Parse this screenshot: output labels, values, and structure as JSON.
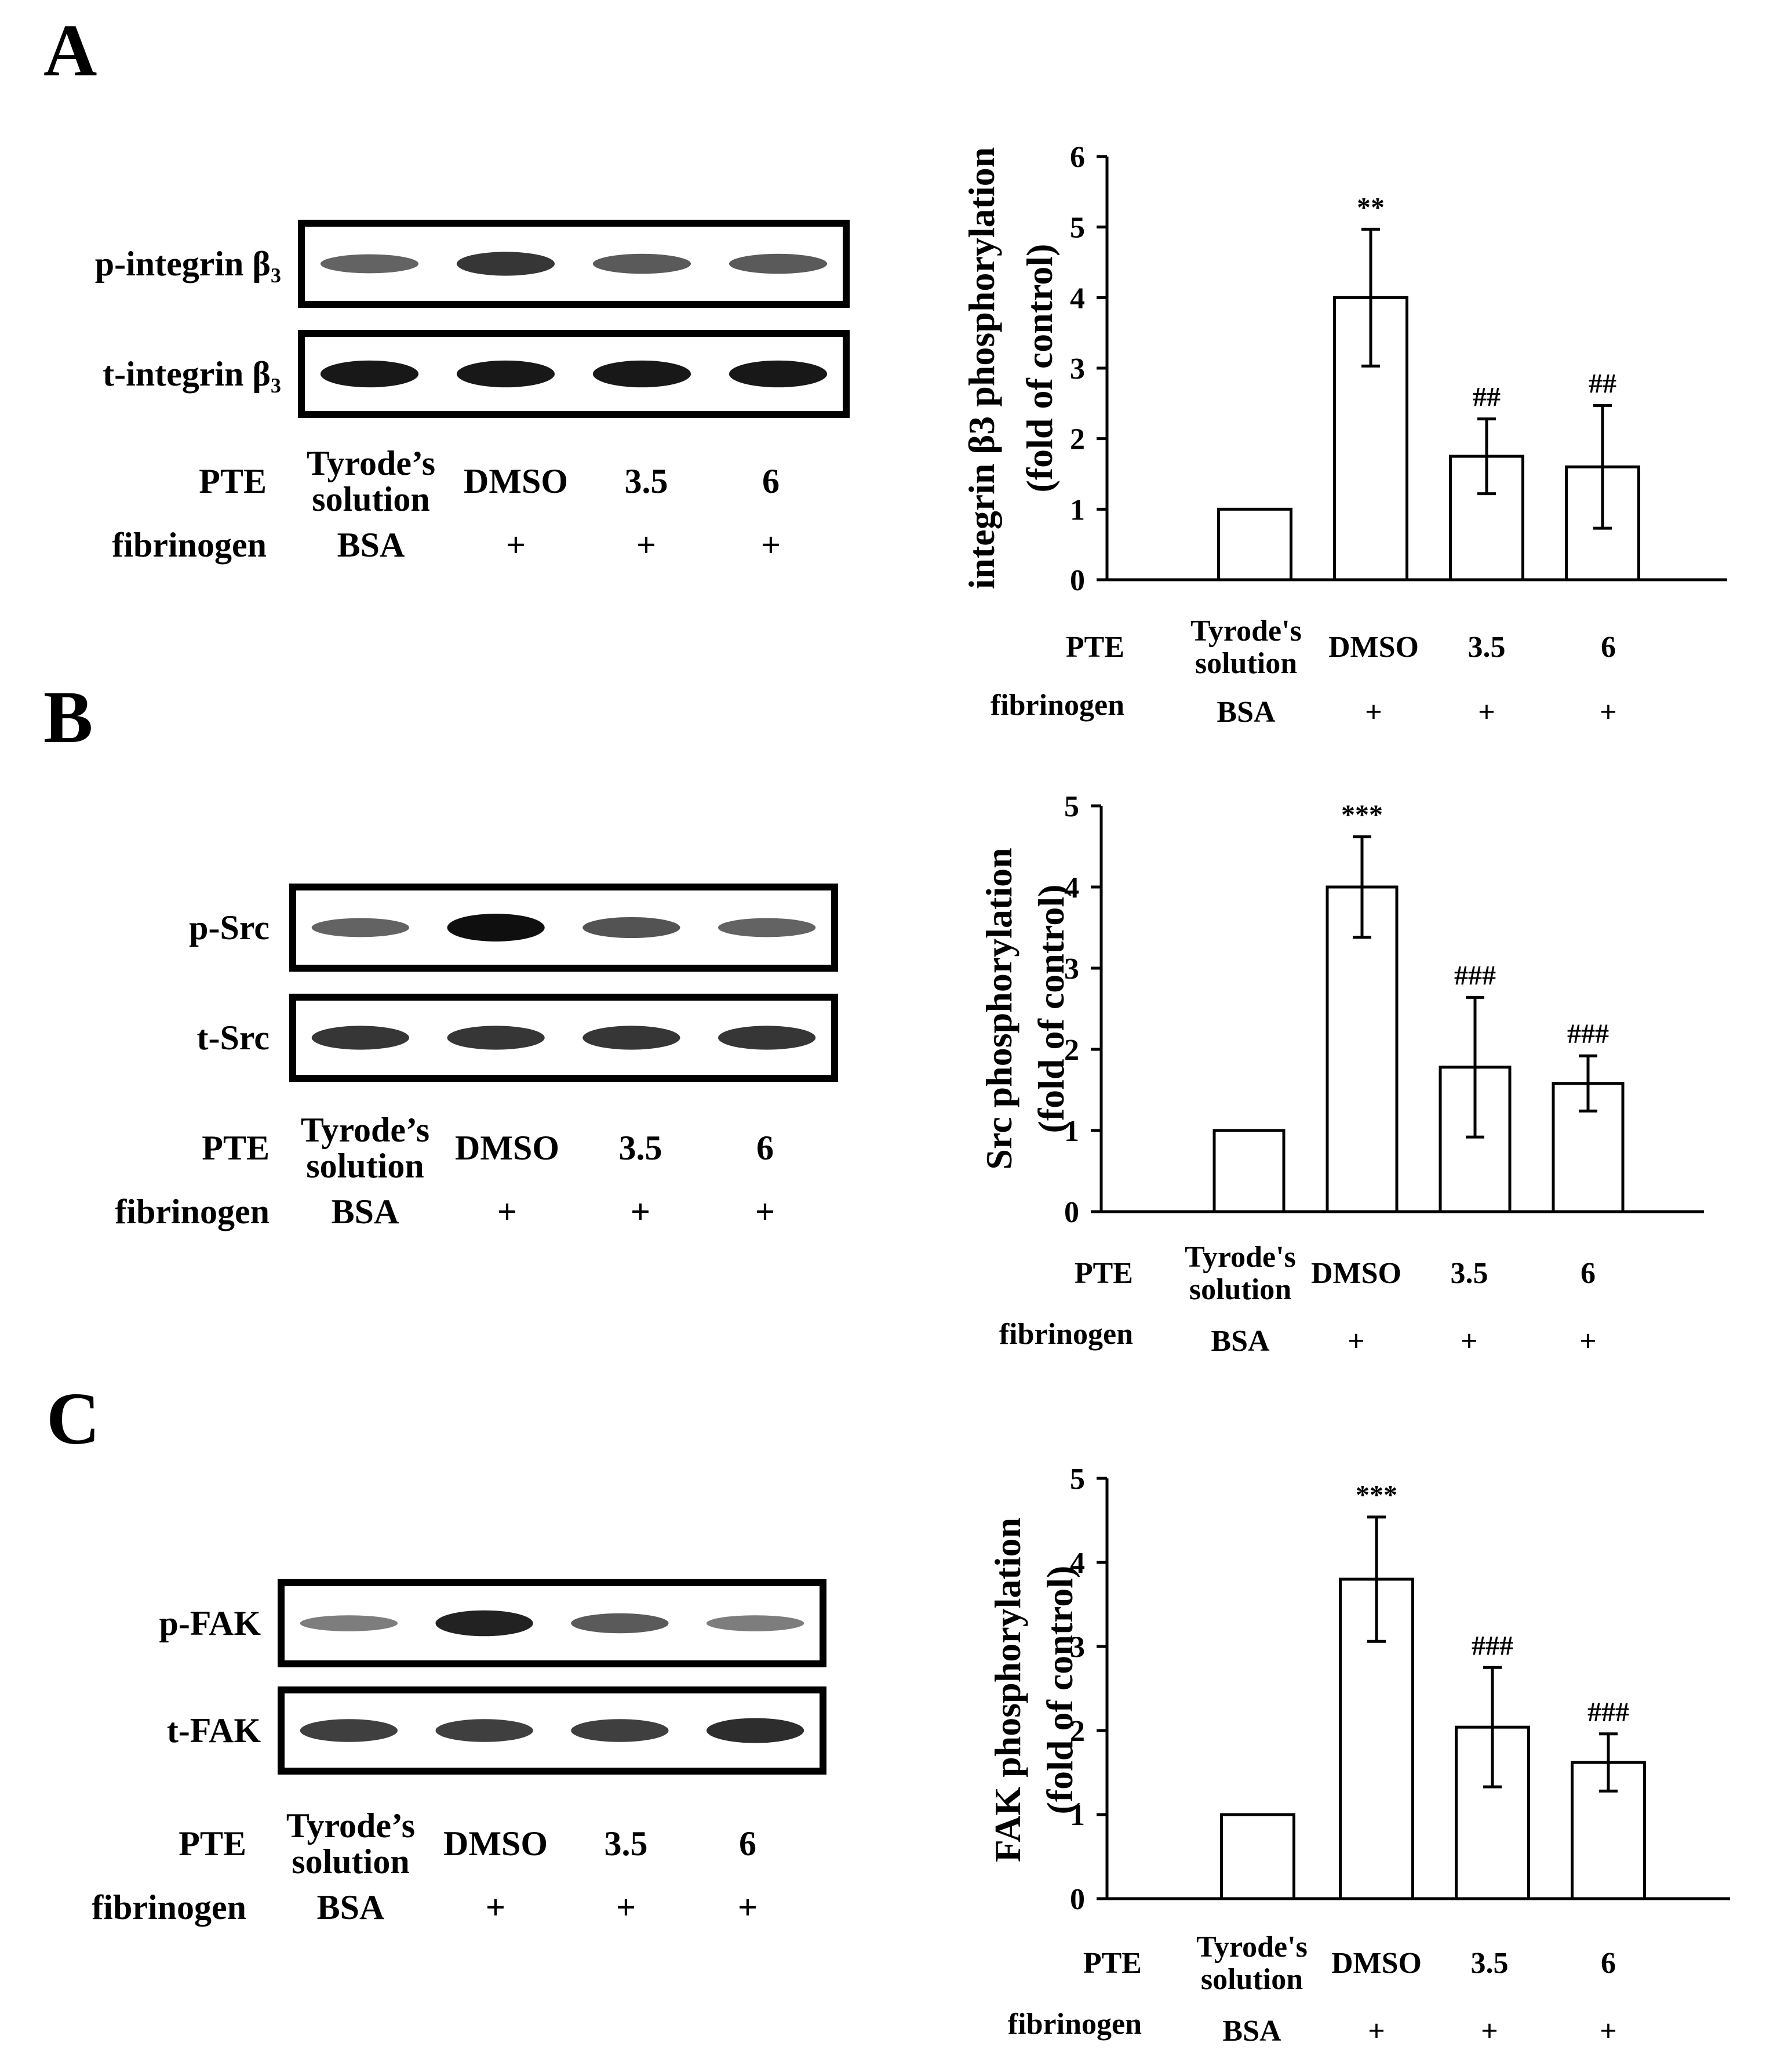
{
  "panels": [
    {
      "letter": "A",
      "blot": {
        "rows": [
          "p-integrin β₃",
          "t-integrin β₃"
        ],
        "conditions": {
          "pte_label": "PTE",
          "fibrinogen_label": "fibrinogen",
          "pte": [
            "Tyrode’s\nsolution",
            "DMSO",
            "3.5",
            "6"
          ],
          "fibrinogen": [
            "BSA",
            "+",
            "+",
            "+"
          ]
        }
      },
      "chart": {
        "ylabel_lines": [
          "integrin β3 phosphorylation",
          "(fold of control)"
        ],
        "conditions": {
          "pte_label": "PTE",
          "fibrinogen_label": "fibrinogen",
          "pte": [
            "Tyrode's\nsolution",
            "DMSO",
            "3.5",
            "6"
          ],
          "fibrinogen": [
            "BSA",
            "+",
            "+",
            "+"
          ]
        }
      }
    },
    {
      "letter": "B",
      "blot": {
        "rows": [
          "p-Src",
          "t-Src"
        ],
        "conditions": {
          "pte_label": "PTE",
          "fibrinogen_label": "fibrinogen",
          "pte": [
            "Tyrode’s\nsolution",
            "DMSO",
            "3.5",
            "6"
          ],
          "fibrinogen": [
            "BSA",
            "+",
            "+",
            "+"
          ]
        }
      },
      "chart": {
        "ylabel_lines": [
          "Src phosphorylation",
          "(fold of control)"
        ],
        "conditions": {
          "pte_label": "PTE",
          "fibrinogen_label": "fibrinogen",
          "pte": [
            "Tyrode's\nsolution",
            "DMSO",
            "3.5",
            "6"
          ],
          "fibrinogen": [
            "BSA",
            "+",
            "+",
            "+"
          ]
        }
      }
    },
    {
      "letter": "C",
      "blot": {
        "rows": [
          "p-FAK",
          "t-FAK"
        ],
        "conditions": {
          "pte_label": "PTE",
          "fibrinogen_label": "fibrinogen",
          "pte": [
            "Tyrode’s\nsolution",
            "DMSO",
            "3.5",
            "6"
          ],
          "fibrinogen": [
            "BSA",
            "+",
            "+",
            "+"
          ]
        }
      },
      "chart": {
        "ylabel_lines": [
          "FAK phosphorylation",
          "(fold of control)"
        ],
        "conditions": {
          "pte_label": "PTE",
          "fibrinogen_label": "fibrinogen",
          "pte": [
            "Tyrode's\nsolution",
            "DMSO",
            "3.5",
            "6"
          ],
          "fibrinogen": [
            "BSA",
            "+",
            "+",
            "+"
          ]
        }
      }
    }
  ],
  "chart_data": [
    {
      "type": "bar",
      "panel": "A",
      "title": "",
      "xlabel": "",
      "ylabel": "integrin β3 phosphorylation (fold of control)",
      "ylim": [
        0,
        6
      ],
      "yticks": [
        0,
        1,
        2,
        3,
        4,
        5,
        6
      ],
      "grid": false,
      "categories": [
        "Tyrode's solution / BSA",
        "DMSO / +",
        "3.5 / +",
        "6 / +"
      ],
      "values": [
        1.0,
        4.0,
        1.75,
        1.6
      ],
      "errors": [
        0,
        0.97,
        0.53,
        0.87
      ],
      "significance": [
        "",
        "**",
        "##",
        "##"
      ]
    },
    {
      "type": "bar",
      "panel": "B",
      "title": "",
      "xlabel": "",
      "ylabel": "Src phosphorylation (fold of control)",
      "ylim": [
        0,
        5
      ],
      "yticks": [
        0,
        1,
        2,
        3,
        4,
        5
      ],
      "grid": false,
      "categories": [
        "Tyrode's solution / BSA",
        "DMSO / +",
        "3.5 / +",
        "6 / +"
      ],
      "values": [
        1.0,
        4.0,
        1.78,
        1.58
      ],
      "errors": [
        0,
        0.62,
        0.86,
        0.34
      ],
      "significance": [
        "",
        "***",
        "###",
        "###"
      ]
    },
    {
      "type": "bar",
      "panel": "C",
      "title": "",
      "xlabel": "",
      "ylabel": "FAK phosphorylation (fold of control)",
      "ylim": [
        0,
        5
      ],
      "yticks": [
        0,
        1,
        2,
        3,
        4,
        5
      ],
      "grid": false,
      "categories": [
        "Tyrode's solution / BSA",
        "DMSO / +",
        "3.5 / +",
        "6 / +"
      ],
      "values": [
        1.0,
        3.8,
        2.04,
        1.62
      ],
      "errors": [
        0,
        0.74,
        0.71,
        0.34
      ],
      "significance": [
        "",
        "***",
        "###",
        "###"
      ]
    }
  ],
  "blot_band_intensity": [
    [
      [
        0.55,
        0.8,
        0.6,
        0.6
      ],
      [
        0.95,
        0.95,
        0.95,
        0.95
      ]
    ],
    [
      [
        0.55,
        1.0,
        0.65,
        0.55
      ],
      [
        0.8,
        0.8,
        0.8,
        0.8
      ]
    ],
    [
      [
        0.4,
        0.9,
        0.6,
        0.4
      ],
      [
        0.75,
        0.75,
        0.75,
        0.85
      ]
    ]
  ]
}
